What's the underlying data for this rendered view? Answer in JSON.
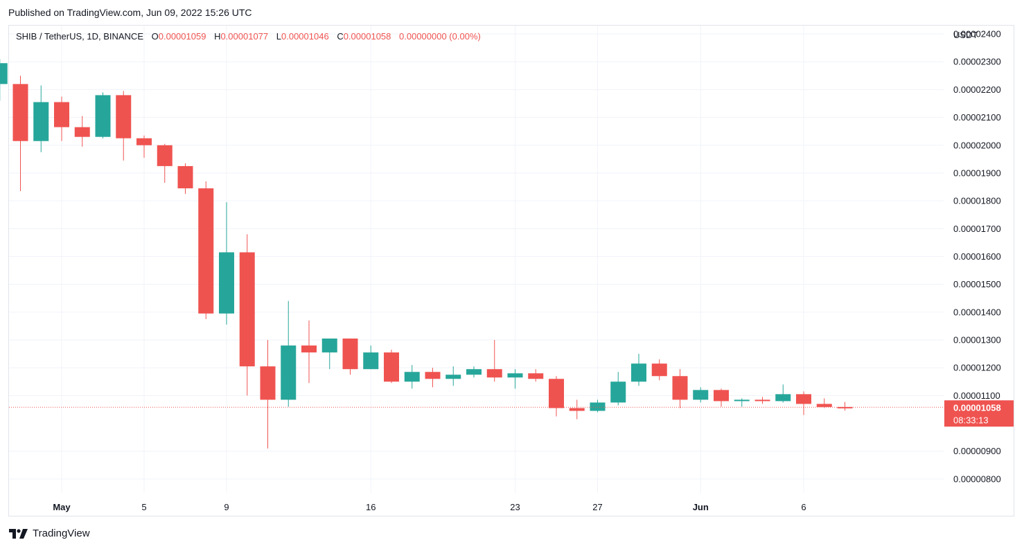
{
  "published": "Published on TradingView.com, Jun 09, 2022 15:26 UTC",
  "brand": "TradingView",
  "legend": {
    "symbol": "SHIB / TetherUS, 1D, BINANCE",
    "o_label": "O",
    "o": "0.00001059",
    "h_label": "H",
    "h": "0.00001077",
    "l_label": "L",
    "l": "0.00001046",
    "c_label": "C",
    "c": "0.00001058",
    "change": "0.00000000 (0.00%)"
  },
  "price_label": {
    "price": "0.00001058",
    "countdown": "08:33:13"
  },
  "colors": {
    "up": "#26a69a",
    "down": "#ef5350",
    "grid": "#f0f3fa",
    "axis_text": "#131722"
  },
  "chart_data": {
    "type": "candlestick",
    "currency": "USDT",
    "ylim": [
      7.5e-06,
      2.43e-05
    ],
    "y_ticks": [
      "0.00002400",
      "0.00002300",
      "0.00002200",
      "0.00002100",
      "0.00002000",
      "0.00001900",
      "0.00001800",
      "0.00001700",
      "0.00001600",
      "0.00001500",
      "0.00001400",
      "0.00001300",
      "0.00001200",
      "0.00001100",
      "0.00000900",
      "0.00000800"
    ],
    "x_ticks": [
      {
        "date": "2022-05-01",
        "label": "May"
      },
      {
        "date": "2022-05-05",
        "label": "5"
      },
      {
        "date": "2022-05-09",
        "label": "9"
      },
      {
        "date": "2022-05-16",
        "label": "16"
      },
      {
        "date": "2022-05-23",
        "label": "23"
      },
      {
        "date": "2022-05-27",
        "label": "27"
      },
      {
        "date": "2022-06-01",
        "label": "Jun"
      },
      {
        "date": "2022-06-06",
        "label": "6"
      }
    ],
    "last_close": 1.058e-05,
    "candles": [
      {
        "date": "2022-04-28",
        "o": 2.22e-05,
        "h": 2.31e-05,
        "l": 2.16e-05,
        "c": 2.295e-05
      },
      {
        "date": "2022-04-29",
        "o": 2.22e-05,
        "h": 2.25e-05,
        "l": 1.835e-05,
        "c": 2.015e-05
      },
      {
        "date": "2022-04-30",
        "o": 2.015e-05,
        "h": 2.215e-05,
        "l": 1.975e-05,
        "c": 2.155e-05
      },
      {
        "date": "2022-05-01",
        "o": 2.155e-05,
        "h": 2.175e-05,
        "l": 2.015e-05,
        "c": 2.065e-05
      },
      {
        "date": "2022-05-02",
        "o": 2.065e-05,
        "h": 2.105e-05,
        "l": 1.995e-05,
        "c": 2.03e-05
      },
      {
        "date": "2022-05-03",
        "o": 2.03e-05,
        "h": 2.19e-05,
        "l": 2.025e-05,
        "c": 2.18e-05
      },
      {
        "date": "2022-05-04",
        "o": 2.18e-05,
        "h": 2.195e-05,
        "l": 1.945e-05,
        "c": 2.025e-05
      },
      {
        "date": "2022-05-05",
        "o": 2.025e-05,
        "h": 2.035e-05,
        "l": 1.955e-05,
        "c": 2e-05
      },
      {
        "date": "2022-05-06",
        "o": 2e-05,
        "h": 2.005e-05,
        "l": 1.865e-05,
        "c": 1.925e-05
      },
      {
        "date": "2022-05-07",
        "o": 1.925e-05,
        "h": 1.935e-05,
        "l": 1.825e-05,
        "c": 1.845e-05
      },
      {
        "date": "2022-05-08",
        "o": 1.845e-05,
        "h": 1.87e-05,
        "l": 1.375e-05,
        "c": 1.395e-05
      },
      {
        "date": "2022-05-09",
        "o": 1.395e-05,
        "h": 1.795e-05,
        "l": 1.355e-05,
        "c": 1.615e-05
      },
      {
        "date": "2022-05-10",
        "o": 1.615e-05,
        "h": 1.68e-05,
        "l": 1.1e-05,
        "c": 1.205e-05
      },
      {
        "date": "2022-05-11",
        "o": 1.205e-05,
        "h": 1.3e-05,
        "l": 9.1e-06,
        "c": 1.085e-05
      },
      {
        "date": "2022-05-12",
        "o": 1.085e-05,
        "h": 1.44e-05,
        "l": 1.06e-05,
        "c": 1.28e-05
      },
      {
        "date": "2022-05-13",
        "o": 1.28e-05,
        "h": 1.37e-05,
        "l": 1.145e-05,
        "c": 1.255e-05
      },
      {
        "date": "2022-05-14",
        "o": 1.255e-05,
        "h": 1.305e-05,
        "l": 1.195e-05,
        "c": 1.305e-05
      },
      {
        "date": "2022-05-15",
        "o": 1.305e-05,
        "h": 1.305e-05,
        "l": 1.175e-05,
        "c": 1.195e-05
      },
      {
        "date": "2022-05-16",
        "o": 1.195e-05,
        "h": 1.28e-05,
        "l": 1.195e-05,
        "c": 1.255e-05
      },
      {
        "date": "2022-05-17",
        "o": 1.255e-05,
        "h": 1.265e-05,
        "l": 1.145e-05,
        "c": 1.15e-05
      },
      {
        "date": "2022-05-18",
        "o": 1.15e-05,
        "h": 1.21e-05,
        "l": 1.125e-05,
        "c": 1.185e-05
      },
      {
        "date": "2022-05-19",
        "o": 1.185e-05,
        "h": 1.2e-05,
        "l": 1.13e-05,
        "c": 1.16e-05
      },
      {
        "date": "2022-05-20",
        "o": 1.16e-05,
        "h": 1.205e-05,
        "l": 1.135e-05,
        "c": 1.175e-05
      },
      {
        "date": "2022-05-21",
        "o": 1.175e-05,
        "h": 1.205e-05,
        "l": 1.165e-05,
        "c": 1.195e-05
      },
      {
        "date": "2022-05-22",
        "o": 1.195e-05,
        "h": 1.3e-05,
        "l": 1.15e-05,
        "c": 1.165e-05
      },
      {
        "date": "2022-05-23",
        "o": 1.165e-05,
        "h": 1.195e-05,
        "l": 1.125e-05,
        "c": 1.18e-05
      },
      {
        "date": "2022-05-24",
        "o": 1.18e-05,
        "h": 1.195e-05,
        "l": 1.15e-05,
        "c": 1.16e-05
      },
      {
        "date": "2022-05-25",
        "o": 1.16e-05,
        "h": 1.17e-05,
        "l": 1.025e-05,
        "c": 1.055e-05
      },
      {
        "date": "2022-05-26",
        "o": 1.055e-05,
        "h": 1.085e-05,
        "l": 1.015e-05,
        "c": 1.045e-05
      },
      {
        "date": "2022-05-27",
        "o": 1.045e-05,
        "h": 1.085e-05,
        "l": 1.04e-05,
        "c": 1.075e-05
      },
      {
        "date": "2022-05-28",
        "o": 1.075e-05,
        "h": 1.185e-05,
        "l": 1.065e-05,
        "c": 1.15e-05
      },
      {
        "date": "2022-05-29",
        "o": 1.15e-05,
        "h": 1.25e-05,
        "l": 1.135e-05,
        "c": 1.215e-05
      },
      {
        "date": "2022-05-30",
        "o": 1.215e-05,
        "h": 1.23e-05,
        "l": 1.155e-05,
        "c": 1.17e-05
      },
      {
        "date": "2022-05-31",
        "o": 1.17e-05,
        "h": 1.195e-05,
        "l": 1.055e-05,
        "c": 1.085e-05
      },
      {
        "date": "2022-06-01",
        "o": 1.085e-05,
        "h": 1.13e-05,
        "l": 1.075e-05,
        "c": 1.12e-05
      },
      {
        "date": "2022-06-02",
        "o": 1.12e-05,
        "h": 1.125e-05,
        "l": 1.06e-05,
        "c": 1.08e-05
      },
      {
        "date": "2022-06-03",
        "o": 1.08e-05,
        "h": 1.09e-05,
        "l": 1.06e-05,
        "c": 1.085e-05
      },
      {
        "date": "2022-06-04",
        "o": 1.085e-05,
        "h": 1.095e-05,
        "l": 1.07e-05,
        "c": 1.08e-05
      },
      {
        "date": "2022-06-05",
        "o": 1.08e-05,
        "h": 1.14e-05,
        "l": 1.075e-05,
        "c": 1.105e-05
      },
      {
        "date": "2022-06-06",
        "o": 1.105e-05,
        "h": 1.115e-05,
        "l": 1.03e-05,
        "c": 1.07e-05
      },
      {
        "date": "2022-06-07",
        "o": 1.07e-05,
        "h": 1.09e-05,
        "l": 1.055e-05,
        "c": 1.059e-05
      },
      {
        "date": "2022-06-08",
        "o": 1.059e-05,
        "h": 1.077e-05,
        "l": 1.046e-05,
        "c": 1.058e-05
      }
    ]
  }
}
